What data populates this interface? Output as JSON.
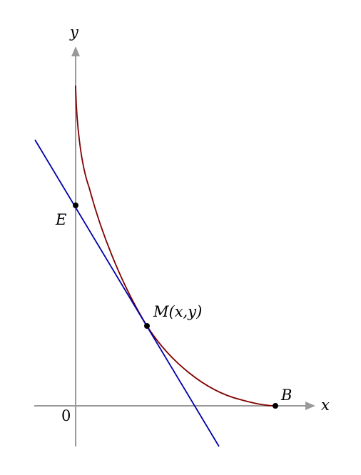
{
  "axes": {
    "x_label": "x",
    "y_label": "y",
    "origin_label": "0",
    "color": "#999999"
  },
  "points": {
    "E": "E",
    "M": "M(x,y)",
    "B": "B"
  },
  "curve": {
    "color": "#800000"
  },
  "tangent_line": {
    "color": "#0000aa"
  }
}
